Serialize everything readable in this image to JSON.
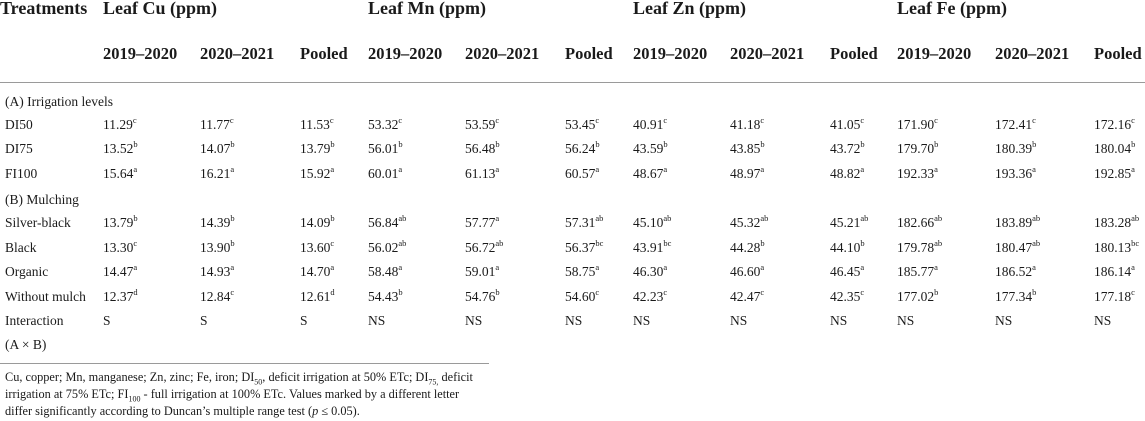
{
  "header": {
    "treatments": "Treatments",
    "groups": [
      "Leaf Cu (ppm)",
      "Leaf Mn (ppm)",
      "Leaf Zn (ppm)",
      "Leaf Fe (ppm)"
    ],
    "subcols": [
      "2019–2020",
      "2020–2021",
      "Pooled"
    ]
  },
  "sections": {
    "irrigation": "(A) Irrigation levels",
    "mulching": "(B) Mulching"
  },
  "rows": [
    {
      "label": "DI50",
      "cells": [
        [
          "11.29",
          "c"
        ],
        [
          "11.77",
          "c"
        ],
        [
          "11.53",
          "c"
        ],
        [
          "53.32",
          "c"
        ],
        [
          "53.59",
          "c"
        ],
        [
          "53.45",
          "c"
        ],
        [
          "40.91",
          "c"
        ],
        [
          "41.18",
          "c"
        ],
        [
          "41.05",
          "c"
        ],
        [
          "171.90",
          "c"
        ],
        [
          "172.41",
          "c"
        ],
        [
          "172.16",
          "c"
        ]
      ]
    },
    {
      "label": "DI75",
      "cells": [
        [
          "13.52",
          "b"
        ],
        [
          "14.07",
          "b"
        ],
        [
          "13.79",
          "b"
        ],
        [
          "56.01",
          "b"
        ],
        [
          "56.48",
          "b"
        ],
        [
          "56.24",
          "b"
        ],
        [
          "43.59",
          "b"
        ],
        [
          "43.85",
          "b"
        ],
        [
          "43.72",
          "b"
        ],
        [
          "179.70",
          "b"
        ],
        [
          "180.39",
          "b"
        ],
        [
          "180.04",
          "b"
        ]
      ]
    },
    {
      "label": "FI100",
      "cells": [
        [
          "15.64",
          "a"
        ],
        [
          "16.21",
          "a"
        ],
        [
          "15.92",
          "a"
        ],
        [
          "60.01",
          "a"
        ],
        [
          "61.13",
          "a"
        ],
        [
          "60.57",
          "a"
        ],
        [
          "48.67",
          "a"
        ],
        [
          "48.97",
          "a"
        ],
        [
          "48.82",
          "a"
        ],
        [
          "192.33",
          "a"
        ],
        [
          "193.36",
          "a"
        ],
        [
          "192.85",
          "a"
        ]
      ]
    },
    {
      "label": "Silver-black",
      "cells": [
        [
          "13.79",
          "b"
        ],
        [
          "14.39",
          "b"
        ],
        [
          "14.09",
          "b"
        ],
        [
          "56.84",
          "ab"
        ],
        [
          "57.77",
          "a"
        ],
        [
          "57.31",
          "ab"
        ],
        [
          "45.10",
          "ab"
        ],
        [
          "45.32",
          "ab"
        ],
        [
          "45.21",
          "ab"
        ],
        [
          "182.66",
          "ab"
        ],
        [
          "183.89",
          "ab"
        ],
        [
          "183.28",
          "ab"
        ]
      ]
    },
    {
      "label": "Black",
      "cells": [
        [
          "13.30",
          "c"
        ],
        [
          "13.90",
          "b"
        ],
        [
          "13.60",
          "c"
        ],
        [
          "56.02",
          "ab"
        ],
        [
          "56.72",
          "ab"
        ],
        [
          "56.37",
          "bc"
        ],
        [
          "43.91",
          "bc"
        ],
        [
          "44.28",
          "b"
        ],
        [
          "44.10",
          "b"
        ],
        [
          "179.78",
          "ab"
        ],
        [
          "180.47",
          "ab"
        ],
        [
          "180.13",
          "bc"
        ]
      ]
    },
    {
      "label": "Organic",
      "cells": [
        [
          "14.47",
          "a"
        ],
        [
          "14.93",
          "a"
        ],
        [
          "14.70",
          "a"
        ],
        [
          "58.48",
          "a"
        ],
        [
          "59.01",
          "a"
        ],
        [
          "58.75",
          "a"
        ],
        [
          "46.30",
          "a"
        ],
        [
          "46.60",
          "a"
        ],
        [
          "46.45",
          "a"
        ],
        [
          "185.77",
          "a"
        ],
        [
          "186.52",
          "a"
        ],
        [
          "186.14",
          "a"
        ]
      ]
    },
    {
      "label": "Without mulch",
      "cells": [
        [
          "12.37",
          "d"
        ],
        [
          "12.84",
          "c"
        ],
        [
          "12.61",
          "d"
        ],
        [
          "54.43",
          "b"
        ],
        [
          "54.76",
          "b"
        ],
        [
          "54.60",
          "c"
        ],
        [
          "42.23",
          "c"
        ],
        [
          "42.47",
          "c"
        ],
        [
          "42.35",
          "c"
        ],
        [
          "177.02",
          "b"
        ],
        [
          "177.34",
          "b"
        ],
        [
          "177.18",
          "c"
        ]
      ]
    },
    {
      "label": "Interaction",
      "cells": [
        [
          "S",
          ""
        ],
        [
          "S",
          ""
        ],
        [
          "S",
          ""
        ],
        [
          "NS",
          ""
        ],
        [
          "NS",
          ""
        ],
        [
          "NS",
          ""
        ],
        [
          "NS",
          ""
        ],
        [
          "NS",
          ""
        ],
        [
          "NS",
          ""
        ],
        [
          "NS",
          ""
        ],
        [
          "NS",
          ""
        ],
        [
          "NS",
          ""
        ]
      ]
    }
  ],
  "interaction_sub": "(A × B)",
  "footnote": {
    "p1": "Cu, copper; Mn, manganese; Zn, zinc; Fe, iron; DI",
    "s1": "50",
    "p2": ", deficit irrigation at 50% ETc; DI",
    "s2": "75,",
    "p3": " deficit irrigation at 75% ETc; FI",
    "s3": "100",
    "p4": " - full irrigation at 100% ETc. Values marked by a different letter differ significantly according to Duncan’s multiple range test (",
    "p_var": "p",
    "p5": " ≤ 0.05)."
  }
}
